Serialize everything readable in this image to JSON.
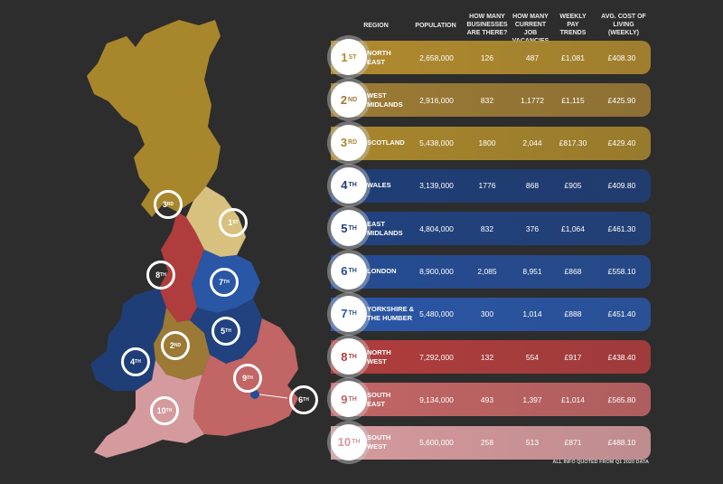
{
  "colors": {
    "gold": "#b08a2e",
    "gold_light": "#d8c07f",
    "navy": "#1e3d73",
    "blue": "#2a56a3",
    "red": "#b2413f",
    "pink": "#d99ea0",
    "background": "#2d2d2d"
  },
  "headers": {
    "region": "REGION",
    "population": "POPULATION",
    "businesses": "HOW MANY BUSINESSES ARE THERE?",
    "vacancies": "HOW MANY CURRENT JOB VACANCIES",
    "pay": "WEEKLY PAY TRENDS",
    "cost": "AVG. COST OF LIVING (WEEKLY)"
  },
  "chart_data": {
    "type": "table",
    "columns": [
      "REGION",
      "POPULATION",
      "HOW MANY BUSINESSES ARE THERE?",
      "HOW MANY CURRENT JOB VACANCIES",
      "WEEKLY PAY TRENDS",
      "AVG. COST OF LIVING (WEEKLY)"
    ],
    "rows": [
      {
        "rank": "1",
        "suffix": "ST",
        "region_l1": "NORTH",
        "region_l2": "EAST",
        "population": "2,658,000",
        "businesses": "126",
        "vacancies": "487",
        "pay": "£1,081",
        "cost": "£408.30",
        "color": "#b08a2e"
      },
      {
        "rank": "2",
        "suffix": "ND",
        "region_l1": "WEST",
        "region_l2": "MIDLANDS",
        "population": "2,916,000",
        "businesses": "832",
        "vacancies": "1,1772",
        "pay": "£1,115",
        "cost": "£425.90",
        "color": "#9c7a35"
      },
      {
        "rank": "3",
        "suffix": "RD",
        "region_l1": "SCOTLAND",
        "region_l2": "",
        "population": "5,438,000",
        "businesses": "1800",
        "vacancies": "2,044",
        "pay": "£817.30",
        "cost": "£429.40",
        "color": "#a8862c"
      },
      {
        "rank": "4",
        "suffix": "TH",
        "region_l1": "WALES",
        "region_l2": "",
        "population": "3,139,000",
        "businesses": "1776",
        "vacancies": "868",
        "pay": "£905",
        "cost": "£409.80",
        "color": "#1f3e77"
      },
      {
        "rank": "5",
        "suffix": "TH",
        "region_l1": "EAST",
        "region_l2": "MIDLANDS",
        "population": "4,804,000",
        "businesses": "832",
        "vacancies": "376",
        "pay": "£1,064",
        "cost": "£461.30",
        "color": "#21427f"
      },
      {
        "rank": "6",
        "suffix": "TH",
        "region_l1": "LONDON",
        "region_l2": "",
        "population": "8,900,000",
        "businesses": "2,085",
        "vacancies": "8,951",
        "pay": "£868",
        "cost": "£558.10",
        "color": "#254c93"
      },
      {
        "rank": "7",
        "suffix": "TH",
        "region_l1": "YORKSHIRE &",
        "region_l2": "THE HUMBER",
        "population": "5,480,000",
        "businesses": "300",
        "vacancies": "1,014",
        "pay": "£888",
        "cost": "£451.40",
        "color": "#2a56a6"
      },
      {
        "rank": "8",
        "suffix": "TH",
        "region_l1": "NORTH",
        "region_l2": "WEST",
        "population": "7,292,000",
        "businesses": "132",
        "vacancies": "554",
        "pay": "£917",
        "cost": "£438.40",
        "color": "#b03d3d"
      },
      {
        "rank": "9",
        "suffix": "TH",
        "region_l1": "SOUTH",
        "region_l2": "EAST",
        "population": "9,134,000",
        "businesses": "493",
        "vacancies": "1,397",
        "pay": "£1,014",
        "cost": "£565.80",
        "color": "#c26565"
      },
      {
        "rank": "10",
        "suffix": "TH",
        "region_l1": "SOUTH",
        "region_l2": "WEST",
        "population": "5,600,000",
        "businesses": "258",
        "vacancies": "513",
        "pay": "£871",
        "cost": "£488.10",
        "color": "#d59a9d"
      }
    ]
  },
  "map_badges": [
    {
      "rank": "1",
      "suffix": "ST",
      "region": "north-east"
    },
    {
      "rank": "2",
      "suffix": "ND",
      "region": "west-midlands"
    },
    {
      "rank": "3",
      "suffix": "RD",
      "region": "scotland"
    },
    {
      "rank": "4",
      "suffix": "TH",
      "region": "wales"
    },
    {
      "rank": "5",
      "suffix": "TH",
      "region": "east-midlands"
    },
    {
      "rank": "6",
      "suffix": "TH",
      "region": "london"
    },
    {
      "rank": "7",
      "suffix": "TH",
      "region": "yorkshire"
    },
    {
      "rank": "8",
      "suffix": "TH",
      "region": "north-west"
    },
    {
      "rank": "9",
      "suffix": "TH",
      "region": "south-east"
    },
    {
      "rank": "10",
      "suffix": "TH",
      "region": "south-west"
    }
  ],
  "footnote": "ALL INFO QUOTED FROM Q1 2020 DATA"
}
